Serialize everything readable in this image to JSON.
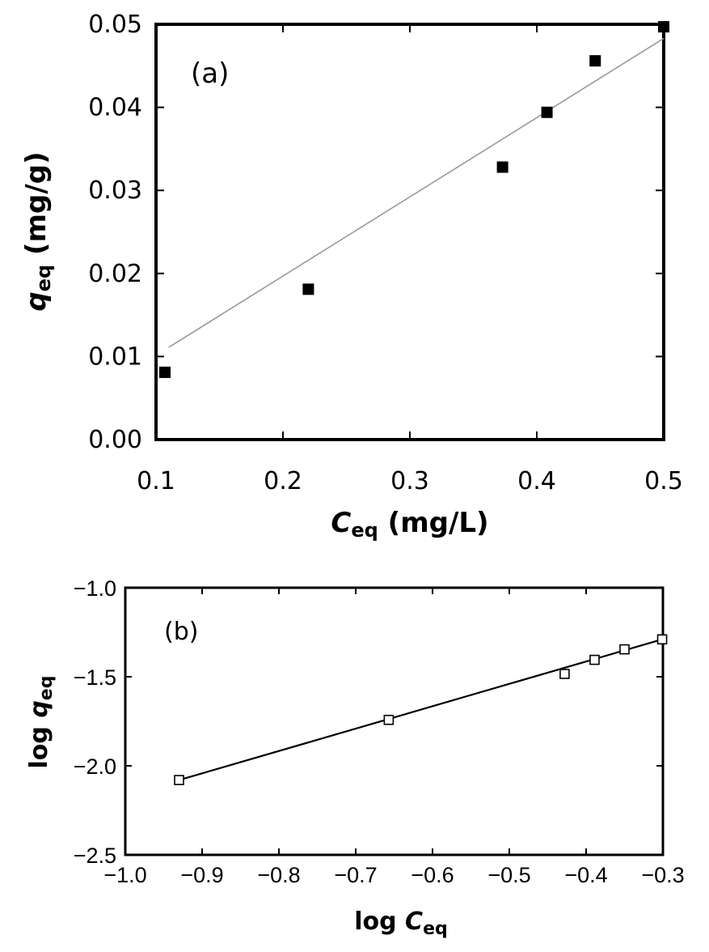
{
  "chart_data": [
    {
      "type": "scatter",
      "panel_label": "(a)",
      "xlabel": {
        "main": "C",
        "sub": "eq",
        "unit": " (mg/L)"
      },
      "ylabel": {
        "main": "q",
        "sub": "eq",
        "unit": " (mg/g)"
      },
      "xlim": [
        0.1,
        0.5
      ],
      "ylim": [
        0.0,
        0.05
      ],
      "xticks": [
        "0.1",
        "0.2",
        "0.3",
        "0.4",
        "0.5"
      ],
      "yticks": [
        "0.00",
        "0.01",
        "0.02",
        "0.03",
        "0.04",
        "0.05"
      ],
      "grid": false,
      "series": [
        {
          "marker": "filled-square",
          "color": "#000000",
          "x": [
            0.107,
            0.22,
            0.373,
            0.408,
            0.446,
            0.5
          ],
          "y": [
            0.0081,
            0.0181,
            0.0328,
            0.0394,
            0.0456,
            0.0497
          ]
        }
      ],
      "fit_line": {
        "color": "#999999",
        "x": [
          0.11,
          0.5
        ],
        "y": [
          0.0111,
          0.0483
        ]
      }
    },
    {
      "type": "scatter",
      "panel_label": "(b)",
      "xlabel": {
        "main": "log ",
        "var": "C",
        "sub": "eq"
      },
      "ylabel": {
        "main": "log ",
        "var": "q",
        "sub": "eq"
      },
      "xlim": [
        -1.0,
        -0.3
      ],
      "ylim": [
        -2.5,
        -1.0
      ],
      "xticks": [
        "−1.0",
        "−0.9",
        "−0.8",
        "−0.7",
        "−0.6",
        "−0.5",
        "−0.4",
        "−0.3"
      ],
      "yticks": [
        "−2.5",
        "−2.0",
        "−1.5",
        "−1.0"
      ],
      "grid": false,
      "series": [
        {
          "marker": "open-square",
          "color": "#000000",
          "x": [
            -0.93,
            -0.657,
            -0.428,
            -0.389,
            -0.35,
            -0.301
          ],
          "y": [
            -2.08,
            -1.742,
            -1.484,
            -1.405,
            -1.346,
            -1.29
          ]
        }
      ],
      "fit_line": {
        "color": "#000000",
        "x": [
          -0.93,
          -0.301
        ],
        "y": [
          -2.08,
          -1.29
        ]
      }
    }
  ]
}
